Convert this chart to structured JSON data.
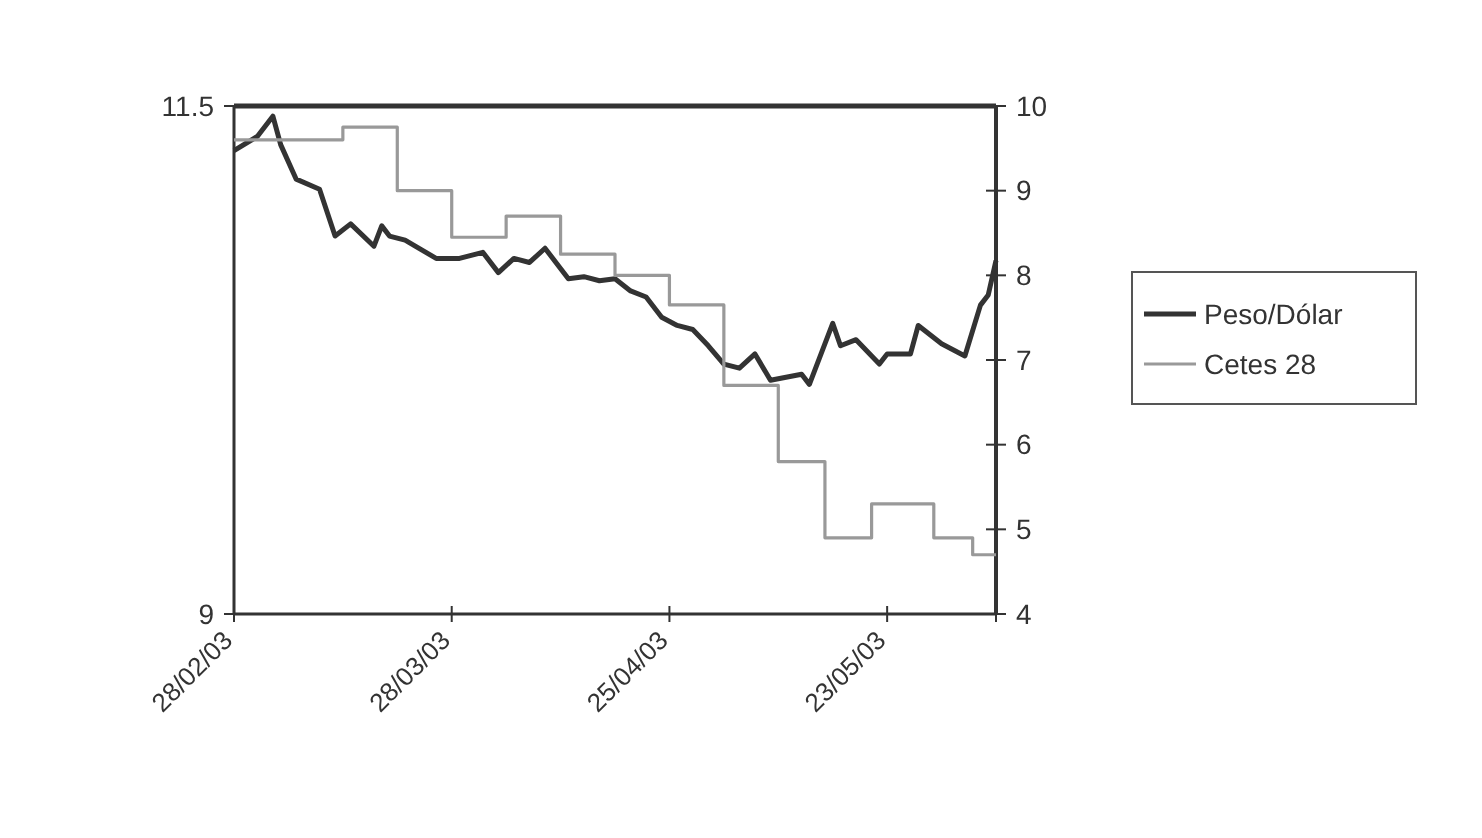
{
  "chart_data": {
    "type": "line",
    "xlim": [
      "2003-02-28",
      "2003-06-06"
    ],
    "xticks": [
      {
        "value": "2003-02-28",
        "label": "28/02/03"
      },
      {
        "value": "2003-03-28",
        "label": "28/03/03"
      },
      {
        "value": "2003-04-25",
        "label": "25/04/03"
      },
      {
        "value": "2003-05-23",
        "label": "23/05/03"
      },
      {
        "value": "2003-06-06",
        "label": null
      }
    ],
    "ylim": [
      9,
      11.5
    ],
    "yticks": [
      9,
      11.5
    ],
    "y2lim": [
      4,
      10
    ],
    "y2ticks": [
      4,
      5,
      6,
      7,
      8,
      9,
      10
    ],
    "grid": false,
    "legend": "right",
    "marker": "none",
    "line_style": "solid",
    "series": [
      {
        "name": "Peso/Dólar",
        "type": "line",
        "color": "#333333",
        "x": [
          "2003-02-28",
          "2003-03-03",
          "2003-03-05",
          "2003-03-06",
          "2003-03-08",
          "2003-03-11",
          "2003-03-13",
          "2003-03-15",
          "2003-03-18",
          "2003-03-19",
          "2003-03-20",
          "2003-03-22",
          "2003-03-26",
          "2003-03-29",
          "2003-04-01",
          "2003-04-03",
          "2003-04-05",
          "2003-04-07",
          "2003-04-09",
          "2003-04-12",
          "2003-04-14",
          "2003-04-16",
          "2003-04-18",
          "2003-04-20",
          "2003-04-22",
          "2003-04-24",
          "2003-04-26",
          "2003-04-28",
          "2003-04-30",
          "2003-05-02",
          "2003-05-04",
          "2003-05-06",
          "2003-05-08",
          "2003-05-12",
          "2003-05-13",
          "2003-05-16",
          "2003-05-17",
          "2003-05-19",
          "2003-05-22",
          "2003-05-23",
          "2003-05-26",
          "2003-05-27",
          "2003-05-30",
          "2003-06-02",
          "2003-06-04",
          "2003-06-05",
          "2003-06-06"
        ],
        "values": [
          11.28,
          11.35,
          11.45,
          11.31,
          11.14,
          11.09,
          10.86,
          10.92,
          10.81,
          10.91,
          10.86,
          10.84,
          10.75,
          10.75,
          10.78,
          10.68,
          10.75,
          10.73,
          10.8,
          10.65,
          10.66,
          10.64,
          10.65,
          10.59,
          10.56,
          10.46,
          10.42,
          10.4,
          10.32,
          10.23,
          10.21,
          10.28,
          10.15,
          10.18,
          10.13,
          10.43,
          10.32,
          10.35,
          10.23,
          10.28,
          10.28,
          10.42,
          10.33,
          10.27,
          10.52,
          10.57,
          10.74
        ]
      },
      {
        "name": "Cetes 28",
        "type": "step",
        "axis": "y2",
        "color": "#999999",
        "x": [
          "2003-02-28",
          "2003-03-14",
          "2003-03-21",
          "2003-03-28",
          "2003-04-04",
          "2003-04-11",
          "2003-04-18",
          "2003-04-25",
          "2003-05-02",
          "2003-05-09",
          "2003-05-15",
          "2003-05-21",
          "2003-05-29",
          "2003-06-03",
          "2003-06-06"
        ],
        "values": [
          9.6,
          9.75,
          9.0,
          8.45,
          8.7,
          8.25,
          8.0,
          7.65,
          6.7,
          5.8,
          4.9,
          5.3,
          4.9,
          4.7,
          4.7
        ]
      }
    ]
  }
}
